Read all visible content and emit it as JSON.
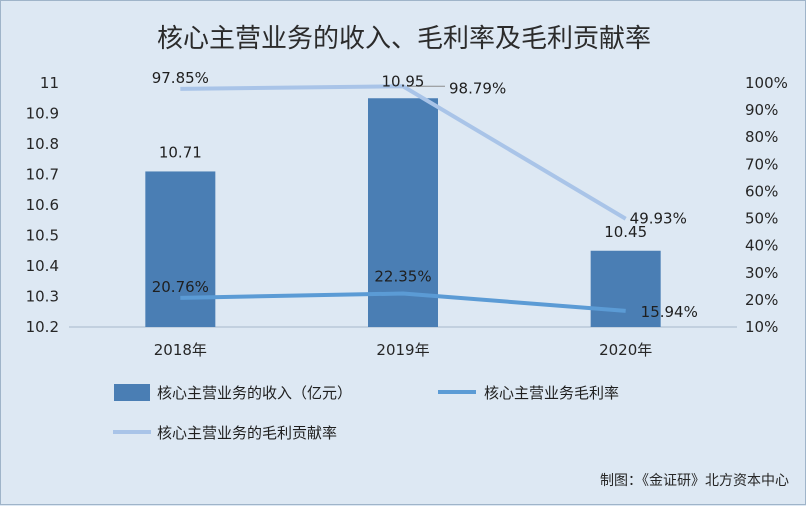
{
  "chart_data": {
    "type": "bar+line",
    "title": "核心主营业务的收入、毛利率及毛利贡献率",
    "categories": [
      "2018年",
      "2019年",
      "2020年"
    ],
    "series": [
      {
        "name": "核心主营业务的收入（亿元）",
        "kind": "bar",
        "axis": "left",
        "values": [
          10.71,
          10.95,
          10.45
        ],
        "labels": [
          "10.71",
          "10.95",
          "10.45"
        ],
        "color": "#4a7eb4"
      },
      {
        "name": "核心主营业务毛利率",
        "kind": "line",
        "axis": "right",
        "values": [
          20.76,
          22.35,
          15.94
        ],
        "labels": [
          "20.76%",
          "22.35%",
          "15.94%"
        ],
        "color": "#5b9bd5"
      },
      {
        "name": "核心主营业务的毛利贡献率",
        "kind": "line",
        "axis": "right",
        "values": [
          97.85,
          98.79,
          49.93
        ],
        "labels": [
          "97.85%",
          "98.79%",
          "49.93%"
        ],
        "color": "#a9c4e8"
      }
    ],
    "y_left": {
      "min": 10.2,
      "max": 11,
      "step": 0.1,
      "ticks": [
        "10.2",
        "10.3",
        "10.4",
        "10.5",
        "10.6",
        "10.7",
        "10.8",
        "10.9",
        "11"
      ]
    },
    "y_right": {
      "min": 10,
      "max": 100,
      "step": 10,
      "ticks": [
        "10%",
        "20%",
        "30%",
        "40%",
        "50%",
        "60%",
        "70%",
        "80%",
        "90%",
        "100%"
      ]
    },
    "grid": false,
    "legend_position": "bottom"
  },
  "footer": {
    "credit": "制图：《金证研》北方资本中心"
  }
}
